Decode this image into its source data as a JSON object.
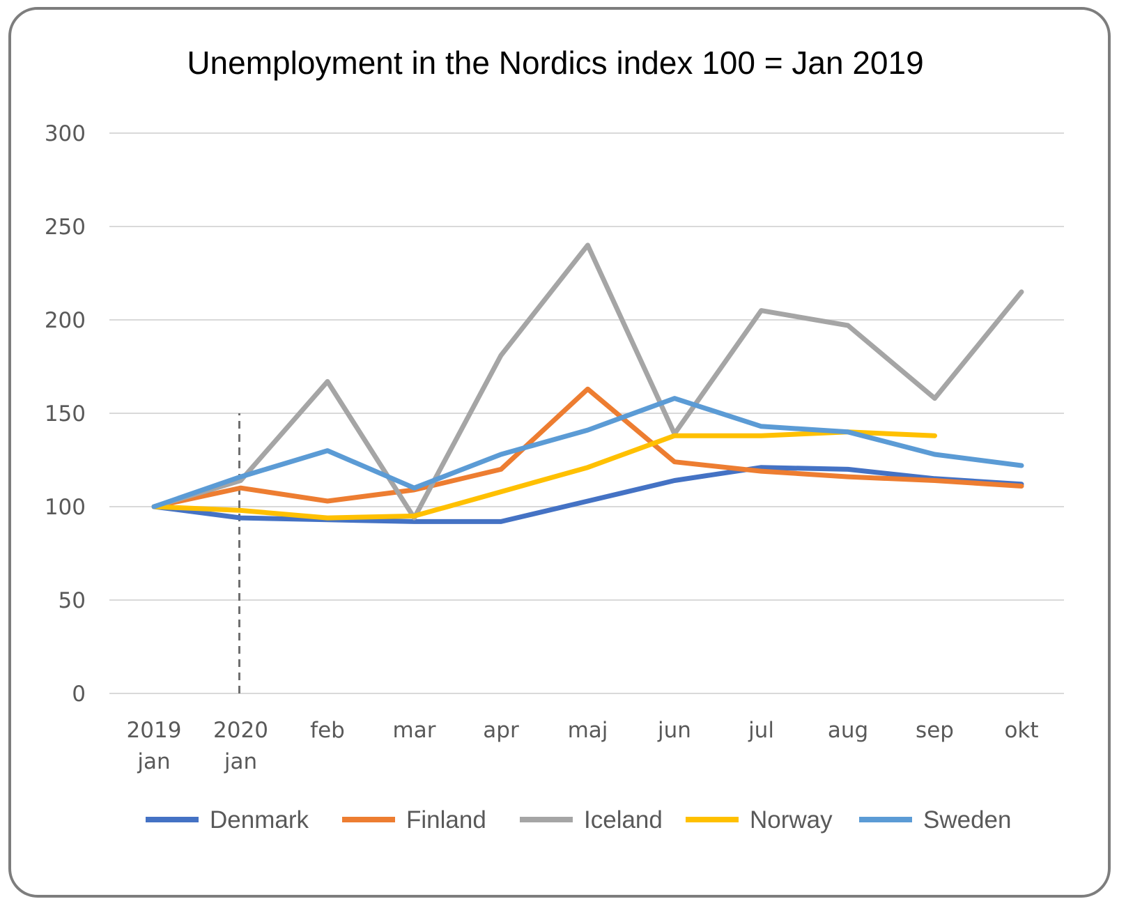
{
  "chart_data": {
    "type": "line",
    "title": "Unemployment in the Nordics index 100 = Jan 2019",
    "xlabel": "",
    "ylabel": "",
    "categories": [
      [
        "2019",
        "jan"
      ],
      [
        "2020",
        "jan"
      ],
      [
        "feb"
      ],
      [
        "mar"
      ],
      [
        "apr"
      ],
      [
        "maj"
      ],
      [
        "jun"
      ],
      [
        "jul"
      ],
      [
        "aug"
      ],
      [
        "sep"
      ],
      [
        "okt"
      ]
    ],
    "ylim": [
      0,
      300
    ],
    "yticks": [
      0,
      50,
      100,
      150,
      200,
      250,
      300
    ],
    "grid": true,
    "legend_position": "bottom",
    "annotations": [
      {
        "type": "vertical-dashed-line",
        "at_category_index": 1,
        "from_y": 0,
        "to_y": 150
      }
    ],
    "series": [
      {
        "name": "Denmark",
        "color": "#4472C4",
        "values": [
          100,
          94,
          93,
          92,
          92,
          103,
          114,
          121,
          120,
          115,
          112
        ]
      },
      {
        "name": "Finland",
        "color": "#ED7D31",
        "values": [
          100,
          110,
          103,
          109,
          120,
          163,
          124,
          119,
          116,
          114,
          111
        ]
      },
      {
        "name": "Iceland",
        "color": "#A5A5A5",
        "values": [
          100,
          114,
          167,
          94,
          181,
          240,
          139,
          205,
          197,
          158,
          215
        ]
      },
      {
        "name": "Norway",
        "color": "#FFC000",
        "values": [
          100,
          98,
          94,
          95,
          108,
          121,
          138,
          138,
          140,
          138,
          null
        ]
      },
      {
        "name": "Sweden",
        "color": "#5B9BD5",
        "values": [
          100,
          116,
          130,
          110,
          128,
          141,
          158,
          143,
          140,
          128,
          122
        ]
      }
    ]
  }
}
